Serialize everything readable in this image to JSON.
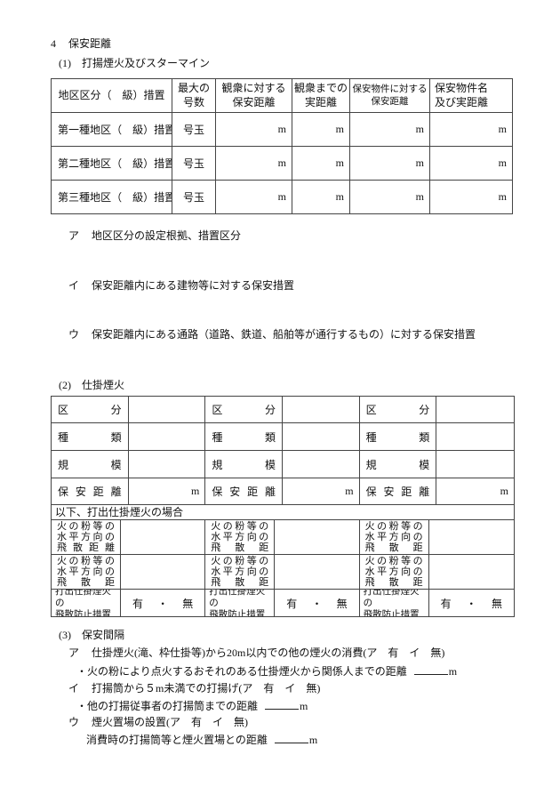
{
  "doc": {
    "section4": {
      "num": "4",
      "title": "保安距離"
    },
    "sub1": {
      "num": "(1)",
      "title": "打揚煙火及びスターマイン"
    },
    "sub1_items": [
      {
        "marker": "ア",
        "text": "地区区分の設定根拠、措置区分"
      },
      {
        "marker": "イ",
        "text": "保安距離内にある建物等に対する保安措置"
      },
      {
        "marker": "ウ",
        "text": "保安距離内にある通路（道路、鉄道、船舶等が通行するもの）に対する保安措置"
      }
    ],
    "table1": {
      "header": {
        "district": "地区区分（　級）措置",
        "max_size": [
          "最大の",
          "号数"
        ],
        "audience_safety": [
          "観衆に対する",
          "保安距離"
        ],
        "audience_actual": [
          "観衆までの",
          "実距離"
        ],
        "property_safety": [
          "保安物件に対する",
          "保安距離"
        ],
        "property_name": [
          "保安物件名",
          "及び実距離"
        ]
      },
      "rows": [
        {
          "district": "第一種地区（　級）措置",
          "max": "号玉",
          "units": [
            "m",
            "m",
            "m",
            "m"
          ]
        },
        {
          "district": "第二種地区（　級）措置",
          "max": "号玉",
          "units": [
            "m",
            "m",
            "m",
            "m"
          ]
        },
        {
          "district": "第三種地区（　級）措置",
          "max": "号玉",
          "units": [
            "m",
            "m",
            "m",
            "m"
          ]
        }
      ]
    },
    "sub2": {
      "num": "(2)",
      "title": "仕掛煙火"
    },
    "table2": {
      "groups": [
        {
          "kubun": "区分",
          "shurui": "種類",
          "kibo": "規模",
          "hoan": "保安距離",
          "unit": "m"
        },
        {
          "kubun": "区分",
          "shurui": "種類",
          "kibo": "規模",
          "hoan": "保安距離",
          "unit": "m"
        },
        {
          "kubun": "区分",
          "shurui": "種類",
          "kibo": "規模",
          "hoan": "保安距離",
          "unit": "m"
        }
      ],
      "strip": "以下、打出仕掛煙火の場合",
      "bottom": [
        {
          "rowA": [
            "火の粉等の",
            "水平方向の",
            "飛散距離"
          ],
          "rowB": [
            "火の粉等の",
            "水平方向の",
            "飛散距"
          ],
          "rowC": [
            "打出仕掛煙火の",
            "飛散防止措置"
          ],
          "rowC_value": [
            "有",
            "・",
            "無"
          ]
        },
        {
          "rowA": [
            "火の粉等の",
            "水平方向の",
            "飛散距"
          ],
          "rowB": [
            "火の粉等の",
            "水平方向の",
            "飛散距"
          ],
          "rowC": [
            "打出仕掛煙火の",
            "飛散防止措置"
          ],
          "rowC_value": [
            "有",
            "・",
            "無"
          ]
        },
        {
          "rowA": [
            "火の粉等の",
            "水平方向の",
            "飛散距"
          ],
          "rowB": [
            "火の粉等の",
            "水平方向の",
            "飛散距"
          ],
          "rowC": [
            "打出仕掛煙火の",
            "飛散防止措置"
          ],
          "rowC_value": [
            "有",
            "・",
            "無"
          ]
        }
      ]
    },
    "sub3": {
      "num": "(3)",
      "title": "保安間隔"
    },
    "sub3_items": [
      {
        "marker": "ア",
        "text": "仕掛煙火(滝、枠仕掛等)から20m以内での他の煙火の消費(ア　有　イ　無)",
        "sub": {
          "bullet": "・",
          "text": "火の粉により点火するおそれのある仕掛煙火から関係人までの距離",
          "unit": "m"
        }
      },
      {
        "marker": "イ",
        "text": "打揚筒から５m未満での打揚げ(ア　有　イ　無)",
        "sub": {
          "bullet": "・",
          "text": "他の打揚従事者の打揚筒までの距離",
          "unit": "m"
        }
      },
      {
        "marker": "ウ",
        "text": "煙火置場の設置(ア　有　イ　無)",
        "sub": {
          "text": "消費時の打揚筒等と煙火置場との距離",
          "unit": "m"
        }
      }
    ]
  }
}
